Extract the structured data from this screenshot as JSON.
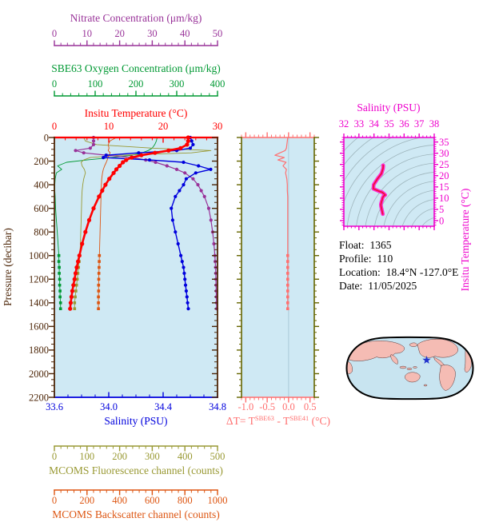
{
  "colors": {
    "plot_bg": "#cfe9f4",
    "nitrate": "#993399",
    "oxygen": "#009933",
    "temperature": "#ff0000",
    "pressure": "#4d2608",
    "salinity": "#0000dd",
    "delta_t": "#ff7070",
    "mid_spine": "#666600",
    "ts_frame": "#ee00cc",
    "ts_curve_outer": "#ff2ad4",
    "ts_curve_inner": "#ee1133",
    "fluorescence": "#999933",
    "backscatter": "#dd5511",
    "contour": "#9fb6bd",
    "zero_line": "#aac9d8",
    "map_ocean": "#c8e4f0",
    "map_land": "#f5bcb4",
    "map_outline": "#000000",
    "star": "#2233cc",
    "info_text": "#000000"
  },
  "titles": {
    "nitrate": "Nitrate Concentration (μm/kg)",
    "oxygen": "SBE63 Oxygen Concentration (μm/kg)",
    "temperature": "Insitu Temperature (°C)",
    "pressure": "Pressure (decibar)",
    "salinity": "Salinity (PSU)",
    "fluorescence": "MCOMS Fluorescence channel (counts)",
    "backscatter": "MCOMS Backscatter channel (counts)",
    "ts_title": "Salinity (PSU)",
    "ts_ylabel": "Insitu Temperature (°C)",
    "delta_t_parts": {
      "p1": "ΔT= T",
      "s1": "SBE63",
      "p2": " - T",
      "s2": "SBE41",
      "p3": " (°C)"
    }
  },
  "float_info": {
    "rows": [
      {
        "label": "Float:",
        "value": "1365"
      },
      {
        "label": "Profile:",
        "value": "110"
      },
      {
        "label": "Location:",
        "value": "18.4°N  -127.0°E"
      },
      {
        "label": "Date:",
        "value": "11/05/2025"
      }
    ]
  },
  "chart_data": [
    {
      "id": "profile_plot",
      "type": "line",
      "ylabel": "Pressure (decibar)",
      "ylim": [
        0,
        2200
      ],
      "y_ticks": [
        "0",
        "200",
        "400",
        "600",
        "800",
        "1000",
        "1200",
        "1400",
        "1600",
        "1800",
        "2000",
        "2200"
      ],
      "y_minor_step": 50,
      "pressure": [
        0,
        30,
        60,
        90,
        110,
        130,
        150,
        170,
        190,
        210,
        240,
        270,
        300,
        350,
        400,
        450,
        500,
        600,
        700,
        800,
        900,
        1000,
        1050,
        1100,
        1150,
        1200,
        1250,
        1300,
        1350,
        1400,
        1450
      ],
      "x_axes": [
        {
          "id": "temperature",
          "label": "Insitu Temperature (°C)",
          "lim": [
            0,
            30
          ],
          "ticks": [
            "0",
            "10",
            "20",
            "30"
          ],
          "minor_step": 2,
          "color_key": "temperature"
        },
        {
          "id": "salinity",
          "label": "Salinity (PSU)",
          "lim": [
            33.6,
            34.8
          ],
          "ticks": [
            "33.6",
            "34.0",
            "34.4",
            "34.8"
          ],
          "minor_step": 0.1,
          "color_key": "salinity"
        },
        {
          "id": "nitrate",
          "label": "Nitrate Concentration (μm/kg)",
          "lim": [
            0,
            50
          ],
          "ticks": [
            "0",
            "10",
            "20",
            "30",
            "40",
            "50"
          ],
          "minor_step": 2,
          "color_key": "nitrate"
        },
        {
          "id": "oxygen",
          "label": "SBE63 Oxygen Concentration (μm/kg)",
          "lim": [
            0,
            400
          ],
          "ticks": [
            "0",
            "100",
            "200",
            "300",
            "400"
          ],
          "minor_step": 20,
          "color_key": "oxygen"
        },
        {
          "id": "fluorescence",
          "label": "MCOMS Fluorescence channel (counts)",
          "lim": [
            0,
            500
          ],
          "ticks": [
            "0",
            "100",
            "200",
            "300",
            "400",
            "500"
          ],
          "minor_step": 20,
          "color_key": "fluorescence"
        },
        {
          "id": "backscatter",
          "label": "MCOMS Backscatter channel (counts)",
          "lim": [
            0,
            1000
          ],
          "ticks": [
            "0",
            "200",
            "400",
            "600",
            "800",
            "1000"
          ],
          "minor_step": 40,
          "color_key": "backscatter"
        }
      ],
      "series": [
        {
          "name": "SBE63 Oxygen",
          "axis": "oxygen",
          "color_key": "oxygen",
          "width": 0.9,
          "marker": "square",
          "marker_all": false,
          "marker_min_pressure": 1000,
          "values": [
            252,
            250,
            246,
            240,
            230,
            215,
            190,
            140,
            80,
            30,
            8,
            18,
            5,
            2,
            1,
            1,
            2,
            3,
            5,
            7,
            9,
            11,
            11,
            12,
            12,
            13,
            13,
            14,
            14,
            15,
            15
          ]
        },
        {
          "name": "MCOMS Fluorescence",
          "axis": "fluorescence",
          "color_key": "fluorescence",
          "width": 0.9,
          "marker": "square",
          "marker_all": false,
          "marker_min_pressure": 1000,
          "values": [
            90,
            95,
            130,
            300,
            480,
            420,
            200,
            110,
            90,
            82,
            85,
            92,
            95,
            90,
            87,
            85,
            84,
            83,
            82,
            81,
            80,
            78,
            76,
            74,
            72,
            70,
            68,
            66,
            64,
            62,
            62
          ]
        },
        {
          "name": "MCOMS Backscatter",
          "axis": "backscatter",
          "color_key": "backscatter",
          "width": 0.9,
          "marker": "square",
          "marker_all": false,
          "marker_min_pressure": 1000,
          "values": [
            380,
            340,
            330,
            335,
            330,
            342,
            334,
            328,
            324,
            318,
            308,
            300,
            295,
            290,
            288,
            287,
            286,
            284,
            282,
            280,
            278,
            276,
            275,
            274,
            273,
            272,
            271,
            271,
            270,
            270,
            270
          ]
        },
        {
          "name": "Nitrate",
          "axis": "nitrate",
          "color_key": "nitrate",
          "width": 1.2,
          "marker": "circle",
          "marker_all": true,
          "values": [
            12,
            12,
            12,
            11,
            6.5,
            9,
            16,
            24,
            28,
            31,
            34.5,
            37.5,
            40,
            42.5,
            44,
            45,
            46,
            47.3,
            48,
            48.5,
            48.9,
            49.2,
            49.3,
            49.4,
            49.45,
            49.5,
            49.55,
            49.6,
            49.65,
            49.7,
            49.75
          ]
        },
        {
          "name": "Salinity",
          "axis": "salinity",
          "color_key": "salinity",
          "width": 1.4,
          "marker": "circle",
          "marker_all": true,
          "values": [
            34.6,
            34.61,
            34.62,
            34.6,
            34.5,
            34.22,
            33.98,
            33.96,
            34.3,
            34.55,
            34.66,
            34.75,
            34.64,
            34.57,
            34.55,
            34.52,
            34.49,
            34.46,
            34.47,
            34.49,
            34.51,
            34.53,
            34.54,
            34.55,
            34.555,
            34.56,
            34.565,
            34.57,
            34.575,
            34.58,
            34.585
          ]
        },
        {
          "name": "Insitu Temperature",
          "axis": "temperature",
          "color_key": "temperature",
          "width": 2.6,
          "marker": "circle",
          "marker_all": true,
          "values": [
            24.6,
            24.6,
            24.4,
            23.2,
            21.0,
            18.5,
            16.0,
            14.2,
            13.2,
            12.6,
            12.0,
            11.4,
            10.9,
            10.1,
            9.4,
            8.8,
            8.2,
            7.2,
            6.4,
            5.7,
            5.1,
            4.6,
            4.35,
            4.1,
            3.9,
            3.7,
            3.5,
            3.3,
            3.15,
            3.0,
            2.9
          ]
        }
      ]
    },
    {
      "id": "delta_t_plot",
      "type": "line",
      "xlabel": "ΔT= T^SBE63 - T^SBE41 (°C)",
      "xlim": [
        -1.1,
        0.6
      ],
      "x_ticks": [
        "-1.0",
        "-0.5",
        "0.0",
        "0.5"
      ],
      "x_minor_step": 0.1,
      "zero_line": true,
      "pressure_ref": "profile_plot",
      "series": [
        {
          "name": "ΔT",
          "color_key": "delta_t",
          "width": 1.2,
          "marker": "square",
          "marker_min_pressure": 1000,
          "values": [
            -0.02,
            -0.03,
            -0.04,
            -0.05,
            -0.08,
            -0.2,
            -0.32,
            -0.1,
            -0.25,
            -0.06,
            -0.13,
            -0.05,
            -0.07,
            -0.04,
            -0.03,
            -0.03,
            -0.02,
            -0.02,
            -0.02,
            -0.02,
            -0.02,
            -0.02,
            -0.02,
            -0.02,
            -0.02,
            -0.02,
            -0.02,
            -0.02,
            -0.02,
            -0.02,
            -0.02
          ]
        }
      ]
    },
    {
      "id": "ts_plot",
      "type": "line",
      "title": "Salinity (PSU)",
      "ylabel": "Insitu Temperature (°C)",
      "xlim": [
        32,
        38
      ],
      "ylim": [
        -2.5,
        37
      ],
      "x_ticks": [
        "32",
        "33",
        "34",
        "35",
        "36",
        "37",
        "38"
      ],
      "x_minor_step": 0.25,
      "y_ticks": [
        "0",
        "5",
        "10",
        "15",
        "20",
        "25",
        "30",
        "35"
      ],
      "y_minor_step": 1,
      "curve_source": "profile_plot salinity vs temperature",
      "contours": 15
    },
    {
      "id": "world_map",
      "type": "map",
      "marker": {
        "shape": "star",
        "x_frac": 0.633,
        "y_frac": 0.372
      }
    }
  ]
}
